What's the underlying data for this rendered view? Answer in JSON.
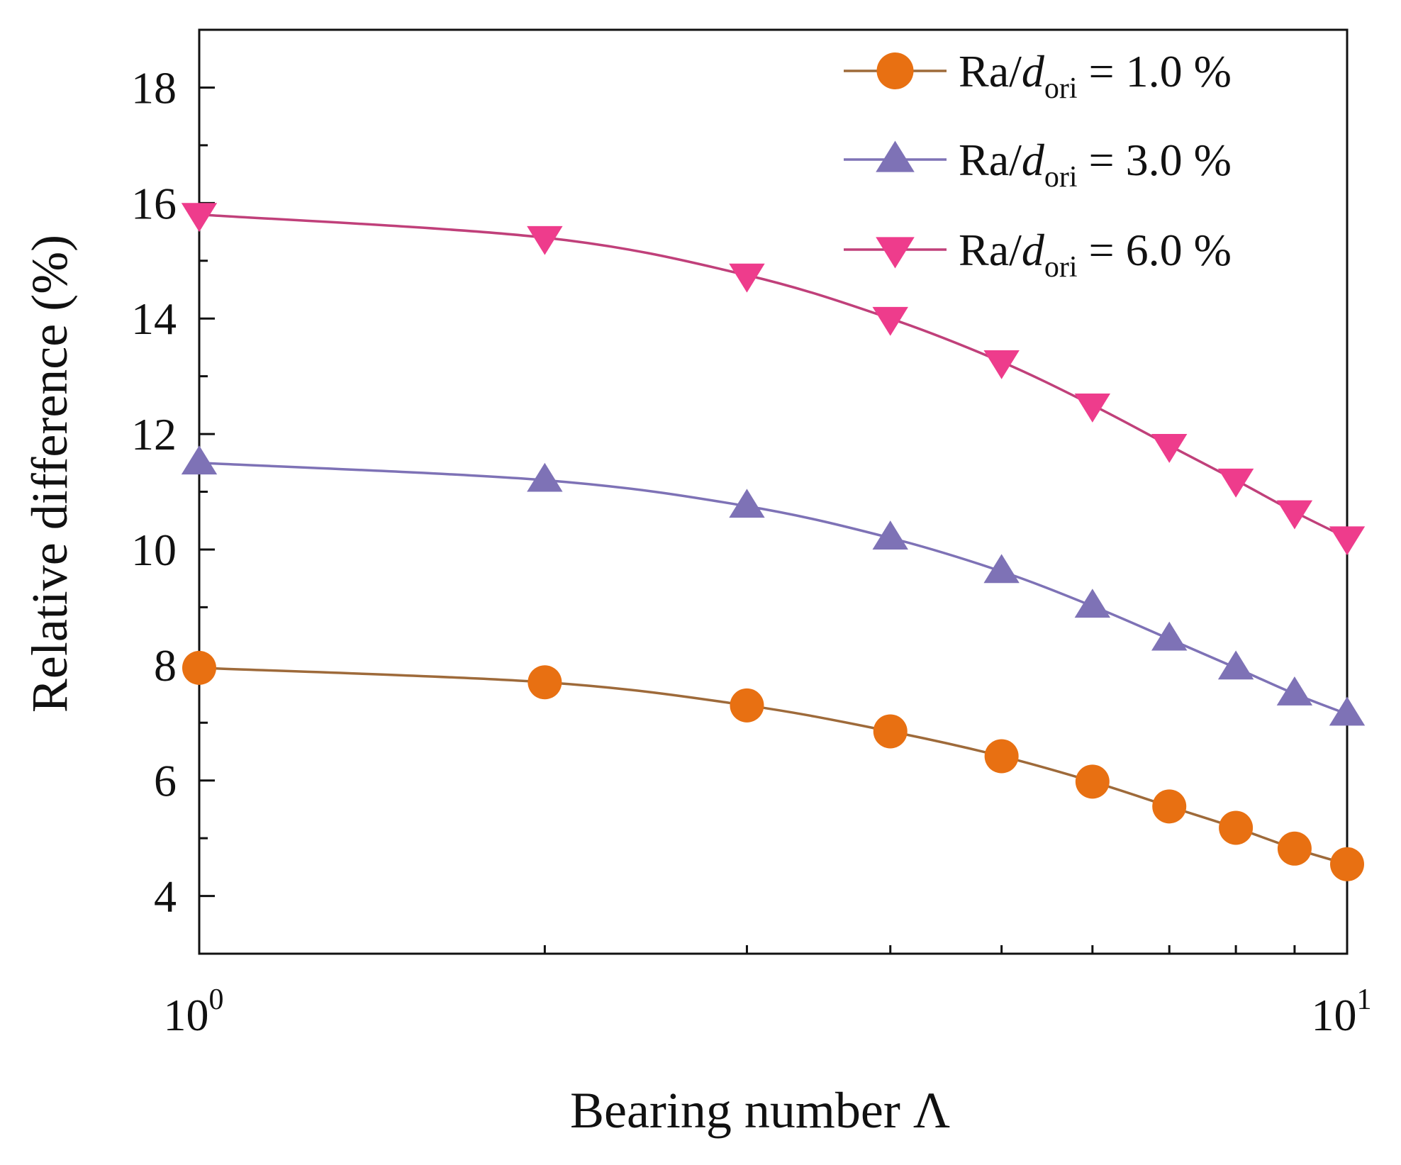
{
  "chart_data": {
    "type": "line",
    "xscale": "log",
    "x": [
      1,
      2,
      3,
      4,
      5,
      6,
      7,
      8,
      9,
      10
    ],
    "xlim": [
      1,
      10
    ],
    "ylim": [
      3,
      19
    ],
    "y_ticks": [
      4,
      6,
      8,
      10,
      12,
      14,
      16,
      18
    ],
    "x_ticks": [
      {
        "value": 1,
        "base": "10",
        "exp": "0"
      },
      {
        "value": 10,
        "base": "10",
        "exp": "1"
      }
    ],
    "xlabel": "Bearing number Λ",
    "ylabel": "Relative difference (%)",
    "legend_position": "top-right",
    "series": [
      {
        "name": "Ra/dori = 1.0 %",
        "label_prefix": "Ra/",
        "label_var": "d",
        "label_sub": "ori",
        "label_suffix": " = 1.0 %",
        "marker": "circle",
        "color": "#E87012",
        "line_color": "#9E6A3A",
        "values": [
          7.95,
          7.7,
          7.3,
          6.85,
          6.42,
          5.98,
          5.55,
          5.18,
          4.82,
          4.55
        ]
      },
      {
        "name": "Ra/dori = 3.0 %",
        "label_prefix": "Ra/",
        "label_var": "d",
        "label_sub": "ori",
        "label_suffix": " = 3.0 %",
        "marker": "triangle-up",
        "color": "#7E72B6",
        "line_color": "#7E72B6",
        "values": [
          11.5,
          11.2,
          10.75,
          10.2,
          9.62,
          9.02,
          8.45,
          7.95,
          7.5,
          7.15
        ]
      },
      {
        "name": "Ra/dori = 6.0 %",
        "label_prefix": "Ra/",
        "label_var": "d",
        "label_sub": "ori",
        "label_suffix": " = 6.0 %",
        "marker": "triangle-down",
        "color": "#EE3C8C",
        "line_color": "#C0407A",
        "values": [
          15.8,
          15.4,
          14.75,
          14.0,
          13.25,
          12.5,
          11.8,
          11.2,
          10.65,
          10.2
        ]
      }
    ]
  }
}
